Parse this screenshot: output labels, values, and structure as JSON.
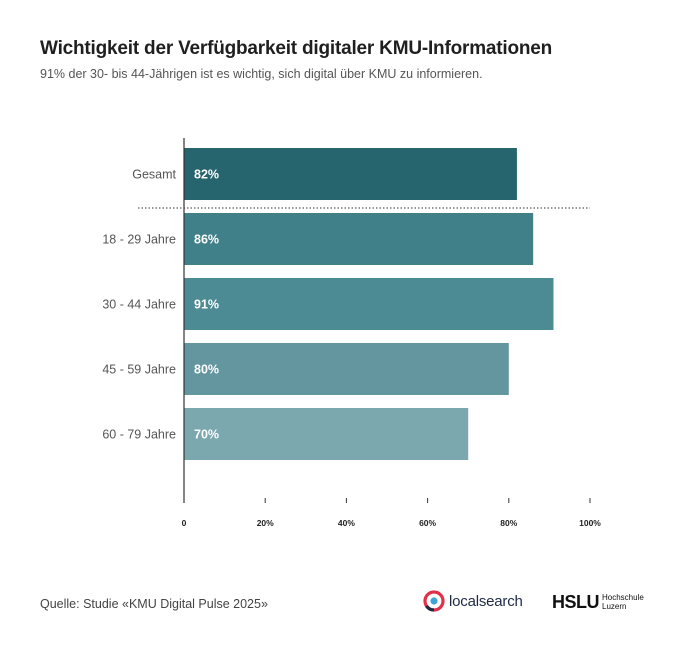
{
  "header": {
    "title": "Wichtigkeit der Verfügbarkeit digitaler KMU-Informationen",
    "subtitle": "91% der 30- bis 44-Jährigen ist es wichtig, sich digital über KMU zu informieren."
  },
  "chart_data": {
    "type": "bar",
    "orientation": "horizontal",
    "categories": [
      "Gesamt",
      "18 - 29 Jahre",
      "30 - 44 Jahre",
      "45 - 59 Jahre",
      "60 - 79 Jahre"
    ],
    "values": [
      82,
      86,
      91,
      80,
      70
    ],
    "value_labels": [
      "82%",
      "86%",
      "91%",
      "80%",
      "70%"
    ],
    "bar_colors": [
      "#26656e",
      "#408089",
      "#4c8b94",
      "#6496a0",
      "#7ba7af"
    ],
    "x_ticks": [
      0,
      20,
      40,
      60,
      80,
      100
    ],
    "x_tick_labels": [
      "0",
      "20%",
      "40%",
      "60%",
      "80%",
      "100%"
    ],
    "xlim": [
      0,
      100
    ],
    "grid": false,
    "separator_after_category": "Gesamt"
  },
  "footer": {
    "source": "Quelle: Studie «KMU Digital Pulse 2025»",
    "logo_localsearch": "localsearch",
    "logo_hslu": "HSLU",
    "logo_hslu_sub1": "Hochschule",
    "logo_hslu_sub2": "Luzern"
  },
  "colors": {
    "axis": "#333333",
    "label_text": "#555555",
    "bar_label_text": "#ffffff",
    "localsearch_ring": "#e0304a",
    "localsearch_accent": "#3fa4d8"
  }
}
